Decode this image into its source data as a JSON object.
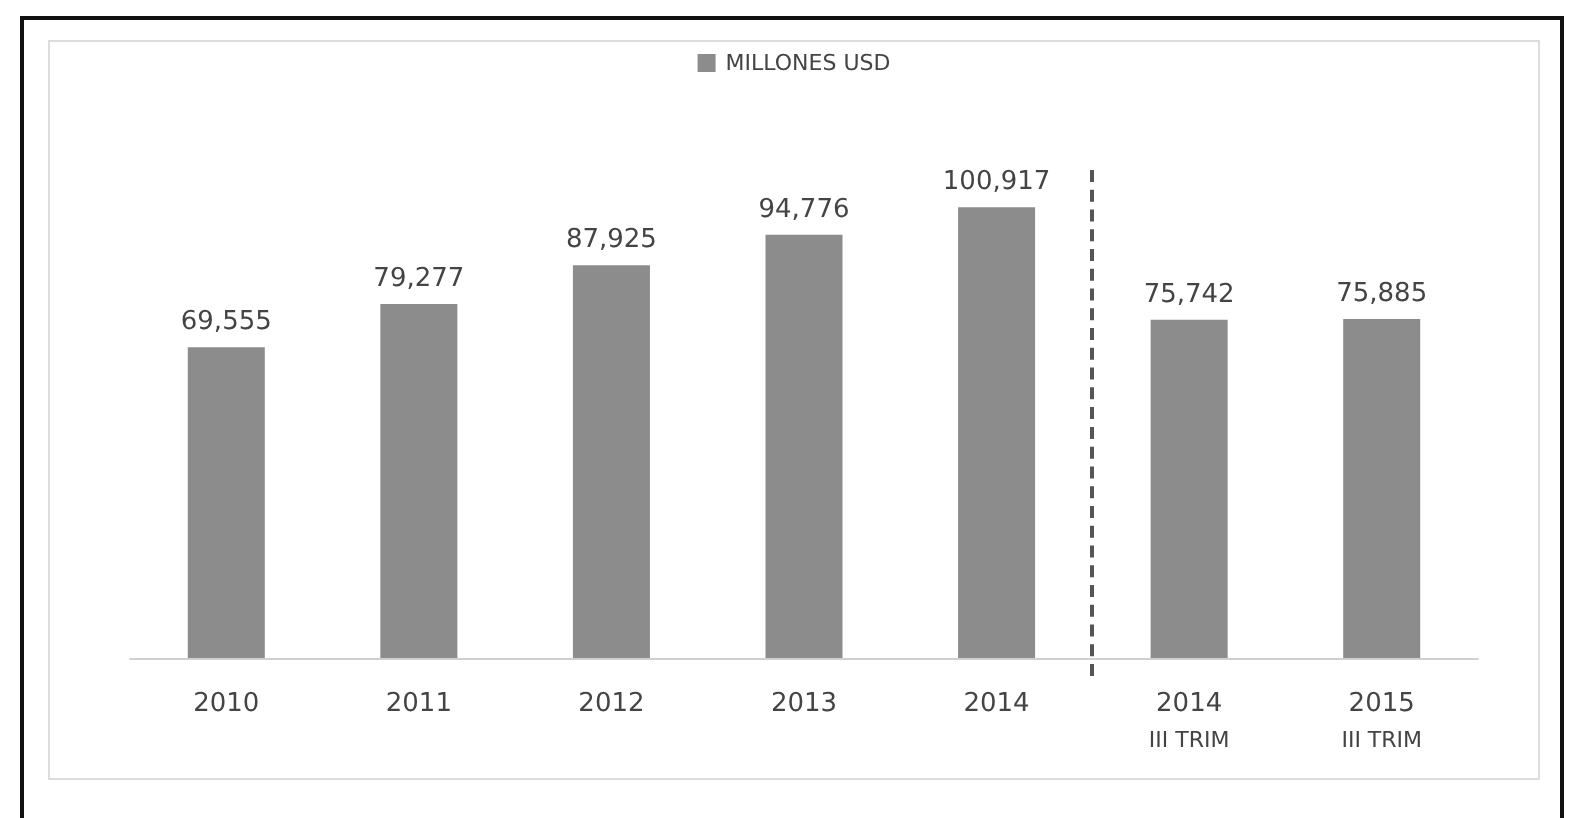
{
  "chart_data": {
    "type": "bar",
    "categories": [
      "2010",
      "2011",
      "2012",
      "2013",
      "2014",
      "2014\nIII TRIM",
      "2015\nIII TRIM"
    ],
    "series": [
      {
        "name": "MILLONES USD",
        "color": "#8c8c8c",
        "values": [
          69555,
          79277,
          87925,
          94776,
          100917,
          75742,
          75885
        ],
        "value_labels": [
          "69,555",
          "79,277",
          "87,925",
          "94,776",
          "100,917",
          "75,742",
          "75,885"
        ]
      }
    ],
    "tick_labels": "x",
    "legend": "top"
  }
}
